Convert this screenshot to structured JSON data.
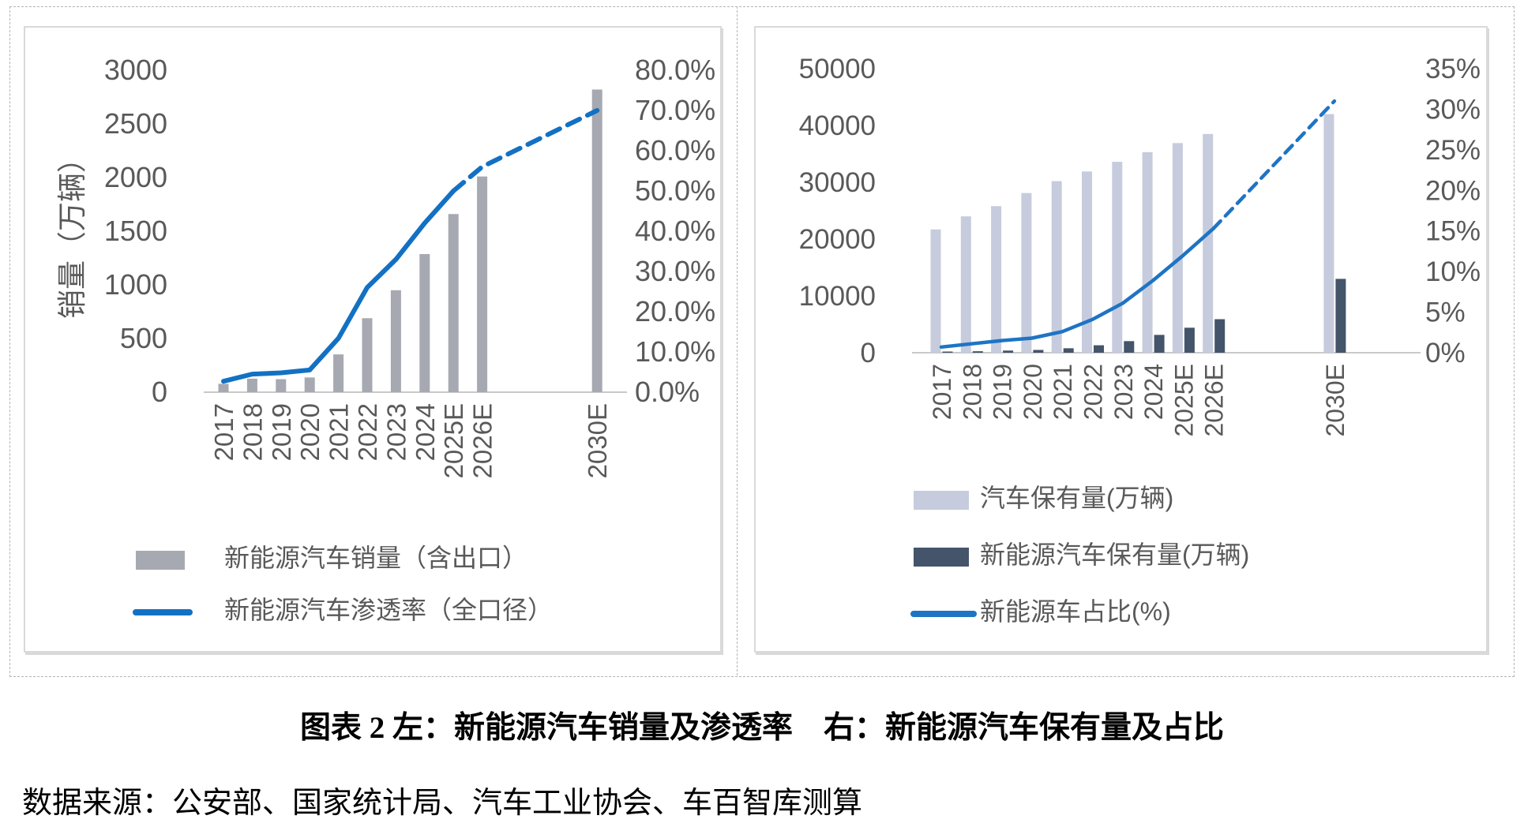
{
  "figure": {
    "caption": "图表 2 左：新能源汽车销量及渗透率　右：新能源汽车保有量及占比",
    "source": "数据来源：公安部、国家统计局、汽车工业协会、车百智库测算"
  },
  "chart_data": [
    {
      "id": "nev-sales-penetration",
      "panel": "left",
      "type": "bar+line",
      "categories": [
        "2017",
        "2018",
        "2019",
        "2020",
        "2021",
        "2022",
        "2023",
        "2024",
        "2025E",
        "2026E",
        "2030E"
      ],
      "category_slots": [
        0,
        1,
        2,
        3,
        4,
        5,
        6,
        7,
        8,
        9,
        13
      ],
      "series": [
        {
          "name": "新能源汽车销量（含出口）",
          "type": "bar",
          "axis": "left",
          "color": "#a6a9b1",
          "values": [
            78,
            126,
            121,
            137,
            352,
            689,
            950,
            1287,
            1660,
            2010,
            2820
          ]
        },
        {
          "name": "新能源汽车渗透率（全口径）",
          "type": "line",
          "axis": "right",
          "color": "#1271c3",
          "values": [
            2.7,
            4.5,
            4.8,
            5.5,
            13.4,
            26,
            33,
            42,
            50,
            56,
            70
          ],
          "dashed_from_index": 8
        }
      ],
      "left_axis": {
        "title": "销量（万辆）",
        "min": 0,
        "max": 3000,
        "ticks": [
          "0",
          "500",
          "1000",
          "1500",
          "2000",
          "2500",
          "3000"
        ]
      },
      "right_axis": {
        "min": 0,
        "max": 80,
        "ticks": [
          "0.0%",
          "10.0%",
          "20.0%",
          "30.0%",
          "40.0%",
          "50.0%",
          "60.0%",
          "70.0%",
          "80.0%"
        ]
      },
      "legend": [
        "新能源汽车销量（含出口）",
        "新能源汽车渗透率（全口径）"
      ],
      "grid": "off",
      "legend_position": "bottom"
    },
    {
      "id": "nev-ownership-share",
      "panel": "right",
      "type": "bar+line",
      "categories": [
        "2017",
        "2018",
        "2019",
        "2020",
        "2021",
        "2022",
        "2023",
        "2024",
        "2025E",
        "2026E",
        "2030E"
      ],
      "category_slots": [
        0,
        1,
        2,
        3,
        4,
        5,
        6,
        7,
        8,
        9,
        13
      ],
      "series": [
        {
          "name": "汽车保有量(万辆)",
          "type": "bar",
          "axis": "left",
          "color": "#c6ccdd",
          "values": [
            21700,
            24000,
            25800,
            28100,
            30200,
            31900,
            33600,
            35300,
            36900,
            38500,
            42000
          ]
        },
        {
          "name": "新能源汽车保有量(万辆)",
          "type": "bar",
          "axis": "left",
          "color": "#44546a",
          "values": [
            153,
            261,
            381,
            492,
            784,
            1310,
            2041,
            3140,
            4400,
            5900,
            13000
          ]
        },
        {
          "name": "新能源车占比(%)",
          "type": "line",
          "axis": "right",
          "color": "#1e74c4",
          "values": [
            0.7,
            1.1,
            1.5,
            1.8,
            2.6,
            4.1,
            6.1,
            8.9,
            12,
            15.3,
            31
          ],
          "dashed_from_index": 9
        }
      ],
      "left_axis": {
        "title": "",
        "min": 0,
        "max": 50000,
        "ticks": [
          "0",
          "10000",
          "20000",
          "30000",
          "40000",
          "50000"
        ]
      },
      "right_axis": {
        "min": 0,
        "max": 35,
        "ticks": [
          "0%",
          "5%",
          "10%",
          "15%",
          "20%",
          "25%",
          "30%",
          "35%"
        ]
      },
      "legend": [
        "汽车保有量(万辆)",
        "新能源汽车保有量(万辆)",
        "新能源车占比(%)"
      ],
      "grid": "off",
      "legend_position": "bottom"
    }
  ]
}
